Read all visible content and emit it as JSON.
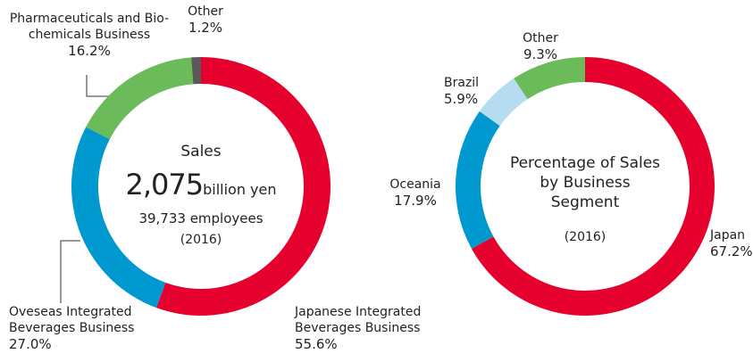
{
  "chart_data": [
    {
      "type": "donut",
      "title": "Sales",
      "total_value": "2,075",
      "total_unit": "billion yen",
      "employees": "39,733 employees",
      "year": "(2016)",
      "categories": [
        "Japanese Integrated Beverages Business",
        "Oveseas Integrated Beverages Business",
        "Pharmaceuticals and Bio-chemicals Business",
        "Other"
      ],
      "values": [
        55.6,
        27.0,
        16.2,
        1.2
      ],
      "value_labels": [
        "55.6%",
        "27.0%",
        "16.2%",
        "1.2%"
      ],
      "colors": [
        "#e6002d",
        "#0099cf",
        "#6cbb5a",
        "#595959"
      ]
    },
    {
      "type": "donut",
      "title": "Percentage of Sales by Business Segment",
      "year": "(2016)",
      "categories": [
        "Japan",
        "Oceania",
        "Brazil",
        "Other"
      ],
      "values": [
        67.2,
        17.9,
        5.9,
        9.3
      ],
      "value_labels": [
        "67.2%",
        "17.9%",
        "5.9%",
        "9.3%"
      ],
      "colors": [
        "#e6002d",
        "#0099cf",
        "#b5dcf0",
        "#6cbb5a"
      ]
    }
  ]
}
